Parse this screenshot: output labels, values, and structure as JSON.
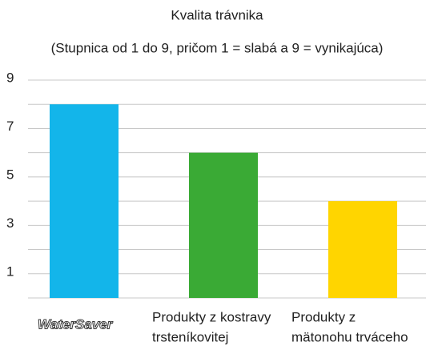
{
  "chart_data": {
    "type": "bar",
    "title": "Kvalita trávnika",
    "subtitle": "(Stupnica od 1 do 9, pričom 1 = slabá a 9 = vynikajúca)",
    "categories": [
      [
        "WaterSaver"
      ],
      [
        "Produkty z kostravy",
        "trsteníkovitej"
      ],
      [
        "Produkty z",
        "mätonohu trváceho"
      ]
    ],
    "values": [
      8,
      6,
      4
    ],
    "colors": [
      "#13b5ea",
      "#3aaa35",
      "#ffd500"
    ],
    "ylim": [
      0,
      9
    ],
    "yticks": [
      1,
      3,
      5,
      7,
      9
    ],
    "minor_grid": [
      0,
      2,
      4,
      6,
      8
    ],
    "grid": true
  }
}
